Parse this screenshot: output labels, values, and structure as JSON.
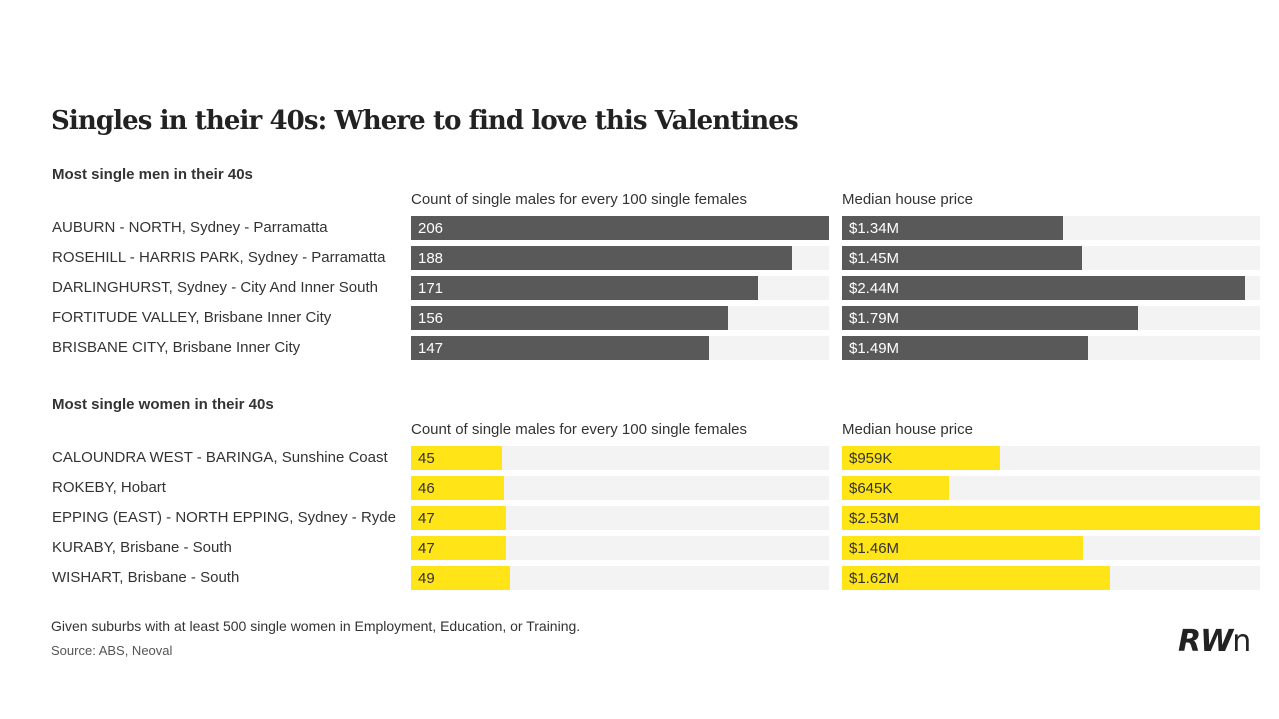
{
  "title": "Singles in their 40s: Where to find love this Valentines",
  "logo": {
    "text": "RWn",
    "left": "RW",
    "right": "n"
  },
  "colors": {
    "men_bar": "#595959",
    "women_bar": "#ffe417",
    "track": "#f3f3f3"
  },
  "footnote": "Given suburbs with at least 500 single women in Employment, Education, or Training.",
  "source": "Source: ABS, Neoval",
  "chart_data": [
    {
      "type": "bar",
      "section_title": "Most single men in their 40s",
      "categories": [
        "AUBURN - NORTH, Sydney - Parramatta",
        "ROSEHILL - HARRIS PARK, Sydney - Parramatta",
        "DARLINGHURST, Sydney - City And Inner South",
        "FORTITUDE VALLEY, Brisbane Inner City",
        "BRISBANE CITY, Brisbane Inner City"
      ],
      "series": [
        {
          "name": "Count of single males for every 100 single females",
          "values": [
            206,
            188,
            171,
            156,
            147
          ],
          "labels": [
            "206",
            "188",
            "171",
            "156",
            "147"
          ],
          "xlim": [
            0,
            206
          ]
        },
        {
          "name": "Median house price",
          "values": [
            1.34,
            1.45,
            2.44,
            1.79,
            1.49
          ],
          "labels": [
            "$1.34M",
            "$1.45M",
            "$2.44M",
            "$1.79M",
            "$1.49M"
          ],
          "xlim": [
            0,
            2.53
          ]
        }
      ]
    },
    {
      "type": "bar",
      "section_title": "Most single women in their 40s",
      "categories": [
        "CALOUNDRA WEST - BARINGA, Sunshine Coast",
        "ROKEBY, Hobart",
        "EPPING (EAST) - NORTH EPPING, Sydney - Ryde",
        "KURABY, Brisbane - South",
        "WISHART, Brisbane - South"
      ],
      "series": [
        {
          "name": "Count of single males for every 100 single females",
          "values": [
            45,
            46,
            47,
            47,
            49
          ],
          "labels": [
            "45",
            "46",
            "47",
            "47",
            "49"
          ],
          "xlim": [
            0,
            206
          ]
        },
        {
          "name": "Median house price",
          "values": [
            0.959,
            0.645,
            2.53,
            1.46,
            1.62
          ],
          "labels": [
            "$959K",
            "$645K",
            "$2.53M",
            "$1.46M",
            "$1.62M"
          ],
          "xlim": [
            0,
            2.53
          ]
        }
      ]
    }
  ]
}
